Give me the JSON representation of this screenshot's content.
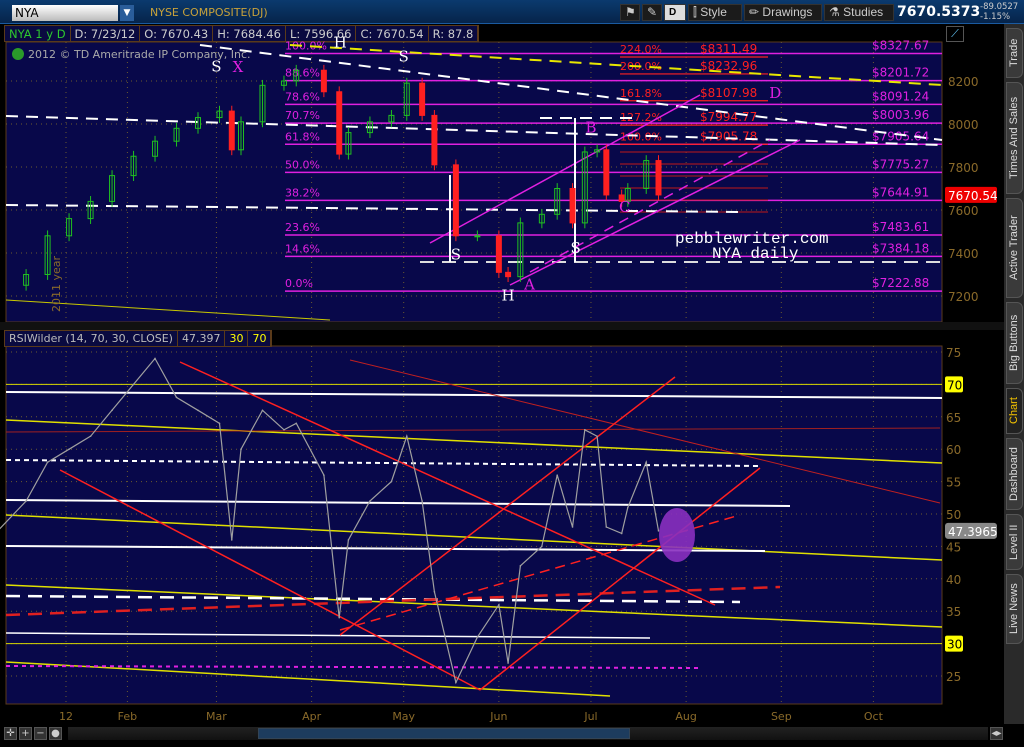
{
  "toolbar": {
    "symbol": "NYA",
    "symbol_dropdown_icon": "chevron-down-icon",
    "title": "NYSE COMPOSITE(DJ)",
    "d_label": "D",
    "style_label": "Style",
    "drawings_label": "Drawings",
    "studies_label": "Studies",
    "last_price": "7670.5373",
    "net_change": "-89.0527",
    "pct_change": "-1.15%"
  },
  "info_bar": {
    "symbol_period": "NYA 1 y D",
    "date": "D: 7/23/12",
    "open": "O: 7670.43",
    "high": "H: 7684.46",
    "low": "L: 7596.66",
    "close": "C: 7670.54",
    "range": "R: 87.8"
  },
  "copyright": "2012 © TD Ameritrade IP Company, Inc.",
  "year_label": "2011 year",
  "watermark": {
    "line1": "pebblewriter.com",
    "line2": "NYA daily"
  },
  "pattern_labels": [
    {
      "text": "S",
      "date": "2012-03-01",
      "price": 8290
    },
    {
      "text": "X",
      "date": "2012-03-08",
      "price": 8350
    },
    {
      "text": "H",
      "date": "2012-03-27",
      "price": 8355
    },
    {
      "text": "S",
      "date": "2012-05-01",
      "price": 8290
    },
    {
      "text": "S",
      "date": "2012-05-18",
      "price": 7370
    },
    {
      "text": "H",
      "date": "2012-06-04",
      "price": 7180
    },
    {
      "text": "A",
      "date": "2012-06-11",
      "price": 7230
    },
    {
      "text": "S",
      "date": "2012-06-26",
      "price": 7400
    },
    {
      "text": "B",
      "date": "2012-07-01",
      "price": 7960
    },
    {
      "text": "C",
      "date": "2012-07-12",
      "price": 7590
    },
    {
      "text": "D",
      "date": "2012-08-17",
      "price": 8120
    }
  ],
  "chart_data": [
    {
      "type": "candlestick",
      "title": "NYSE COMPOSITE(DJ)",
      "ylim": [
        7120,
        8360
      ],
      "yticks": [
        7200,
        7400,
        7600,
        7800,
        8000,
        8200
      ],
      "xticks": [
        "12",
        "Feb",
        "Mar",
        "Apr",
        "May",
        "Jun",
        "Jul",
        "Aug",
        "Sep",
        "Oct"
      ],
      "current_price_label": "7670.54",
      "price_up_color": "#20c020",
      "price_down_color": "#ff2020",
      "x": [
        "2011-12-20",
        "2011-12-30",
        "2012-01-06",
        "2012-01-13",
        "2012-01-20",
        "2012-01-27",
        "2012-02-03",
        "2012-02-10",
        "2012-02-17",
        "2012-02-24",
        "2012-03-02",
        "2012-03-06",
        "2012-03-09",
        "2012-03-16",
        "2012-03-23",
        "2012-03-27",
        "2012-04-05",
        "2012-04-10",
        "2012-04-13",
        "2012-04-20",
        "2012-04-27",
        "2012-05-02",
        "2012-05-07",
        "2012-05-11",
        "2012-05-18",
        "2012-05-25",
        "2012-06-01",
        "2012-06-04",
        "2012-06-08",
        "2012-06-15",
        "2012-06-20",
        "2012-06-25",
        "2012-06-29",
        "2012-07-03",
        "2012-07-06",
        "2012-07-11",
        "2012-07-13",
        "2012-07-19",
        "2012-07-23"
      ],
      "close": [
        7250,
        7300,
        7480,
        7560,
        7640,
        7760,
        7850,
        7920,
        7980,
        8030,
        8060,
        7880,
        8010,
        8180,
        8200,
        8250,
        8150,
        7860,
        7960,
        8010,
        8040,
        8190,
        8040,
        7810,
        7480,
        7480,
        7310,
        7290,
        7540,
        7580,
        7700,
        7540,
        7870,
        7880,
        7670,
        7640,
        7700,
        7830,
        7670
      ]
    },
    {
      "type": "line",
      "title": "RSIWilder (14, 70, 30, CLOSE)",
      "current_value": "47.397",
      "current_value_label": "47.3965",
      "overbought": "70",
      "oversold": "30",
      "ylim": [
        22,
        76
      ],
      "yticks": [
        25,
        30,
        35,
        40,
        45,
        50,
        55,
        60,
        65,
        70,
        75
      ],
      "line_color": "#a0a0a0",
      "x": [
        "2011-12-20",
        "2011-12-30",
        "2012-01-06",
        "2012-01-13",
        "2012-01-20",
        "2012-01-27",
        "2012-02-03",
        "2012-02-10",
        "2012-02-17",
        "2012-02-24",
        "2012-03-02",
        "2012-03-06",
        "2012-03-09",
        "2012-03-16",
        "2012-03-23",
        "2012-03-27",
        "2012-04-05",
        "2012-04-10",
        "2012-04-13",
        "2012-04-20",
        "2012-04-27",
        "2012-05-02",
        "2012-05-07",
        "2012-05-11",
        "2012-05-18",
        "2012-05-25",
        "2012-06-01",
        "2012-06-04",
        "2012-06-08",
        "2012-06-15",
        "2012-06-20",
        "2012-06-25",
        "2012-06-29",
        "2012-07-03",
        "2012-07-06",
        "2012-07-11",
        "2012-07-13",
        "2012-07-19",
        "2012-07-23"
      ],
      "values": [
        47,
        52,
        58,
        60,
        62,
        66,
        70,
        74,
        68,
        66,
        64,
        46,
        60,
        66,
        63,
        64,
        56,
        34,
        46,
        52,
        55,
        62,
        52,
        38,
        24,
        31,
        36,
        27,
        42,
        45,
        56,
        48,
        63,
        62,
        48,
        47,
        51,
        58,
        47.4
      ]
    }
  ],
  "fib_retracement": {
    "color": "#e020e0",
    "levels": [
      {
        "pct": "0.0%",
        "price": "$7222.88",
        "value": 7222.88
      },
      {
        "pct": "14.6%",
        "price": "$7384.18",
        "value": 7384.18
      },
      {
        "pct": "23.6%",
        "price": "$7483.61",
        "value": 7483.61
      },
      {
        "pct": "38.2%",
        "price": "$7644.91",
        "value": 7644.91
      },
      {
        "pct": "50.0%",
        "price": "$7775.27",
        "value": 7775.27
      },
      {
        "pct": "61.8%",
        "price": "$7905.64",
        "value": 7905.64
      },
      {
        "pct": "70.7%",
        "price": "$8003.96",
        "value": 8003.96
      },
      {
        "pct": "78.6%",
        "price": "$8091.24",
        "value": 8091.24
      },
      {
        "pct": "88.6%",
        "price": "$8201.72",
        "value": 8201.72
      },
      {
        "pct": "100.0%",
        "price": "$8327.67",
        "value": 8327.67
      }
    ]
  },
  "fib_extension": {
    "color": "#ff2020",
    "levels": [
      {
        "pct": "100.0%",
        "price": "$7905.78",
        "value": 7905.78
      },
      {
        "pct": "127.2%",
        "price": "$7994.77",
        "value": 7994.77
      },
      {
        "pct": "161.8%",
        "price": "$8107.98",
        "value": 8107.98
      },
      {
        "pct": "200.0%",
        "price": "$8232.96",
        "value": 8232.96
      },
      {
        "pct": "224.0%",
        "price": "$8311.49",
        "value": 8311.49
      }
    ]
  },
  "side_tabs": [
    "Trade",
    "Times And Sales",
    "Active Trader",
    "Big Buttons",
    "Chart",
    "Dashboard",
    "Level II",
    "Live News"
  ],
  "active_tab": "Chart"
}
